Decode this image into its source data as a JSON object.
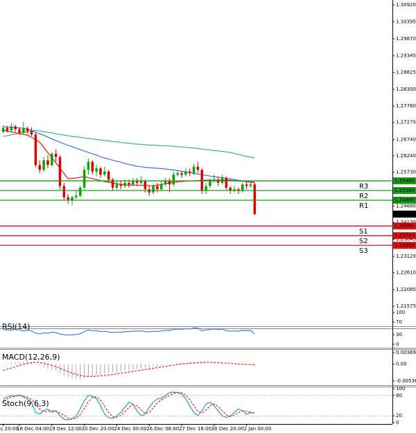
{
  "chart_data": [
    {
      "type": "candlestick",
      "ylim": [
        1.2097,
        1.3107
      ],
      "yticks": [
        {
          "value": 1.3092,
          "label": "1.30920"
        },
        1.30395,
        {
          "value": 1.2987,
          "label": "1.29870"
        },
        1.29345,
        1.28825,
        {
          "value": 1.283,
          "label": "1.28300"
        },
        {
          "value": 1.2778,
          "label": "1.27780"
        },
        1.27275,
        {
          "value": 1.2674,
          "label": "1.26740"
        },
        {
          "value": 1.2624,
          "label": "1.26240"
        },
        {
          "value": 1.2573,
          "label": "1.25730"
        },
        {
          "value": 1.2468,
          "label": "1.24680"
        },
        {
          "value": 1.2417,
          "label": "1.24170"
        },
        1.23645,
        {
          "value": 1.2312,
          "label": "1.23120"
        },
        {
          "value": 1.2261,
          "label": "1.22610"
        },
        1.22085,
        1.21575
      ],
      "up_color": "#00a800",
      "down_color": "#e00000",
      "open": [
        1.2698,
        1.271,
        1.2702,
        1.2715,
        1.2706,
        1.2695,
        1.2708,
        1.27,
        1.269,
        1.2595,
        1.258,
        1.261,
        1.2595,
        1.263,
        1.262,
        1.253,
        1.2495,
        1.2485,
        1.2495,
        1.25,
        1.2525,
        1.258,
        1.2605,
        1.2575,
        1.2585,
        1.2565,
        1.2575,
        1.255,
        1.2525,
        1.2535,
        1.253,
        1.254,
        1.2535,
        1.2545,
        1.254,
        1.2545,
        1.252,
        1.251,
        1.253,
        1.252,
        1.2535,
        1.2545,
        1.2535,
        1.2565,
        1.257,
        1.2565,
        1.2575,
        1.257,
        1.259,
        1.258,
        1.2515,
        1.253,
        1.2545,
        1.255,
        1.254,
        1.2555,
        1.2525,
        1.2515,
        1.252,
        1.2515,
        1.2535,
        1.253,
        1.2535
      ],
      "high": [
        1.2718,
        1.2716,
        1.2725,
        1.272,
        1.2712,
        1.273,
        1.2715,
        1.2712,
        1.2695,
        1.261,
        1.262,
        1.2625,
        1.2635,
        1.2645,
        1.2625,
        1.254,
        1.2505,
        1.25,
        1.2515,
        1.253,
        1.259,
        1.2615,
        1.261,
        1.2595,
        1.259,
        1.259,
        1.258,
        1.2555,
        1.2545,
        1.2545,
        1.255,
        1.255,
        1.2555,
        1.2555,
        1.256,
        1.255,
        1.253,
        1.2535,
        1.254,
        1.2545,
        1.2555,
        1.2555,
        1.2575,
        1.258,
        1.2575,
        1.2585,
        1.2585,
        1.26,
        1.2605,
        1.2585,
        1.254,
        1.2555,
        1.2565,
        1.256,
        1.2565,
        1.256,
        1.253,
        1.253,
        1.2525,
        1.254,
        1.2545,
        1.254,
        1.254
      ],
      "low": [
        1.2694,
        1.2696,
        1.2699,
        1.2698,
        1.2688,
        1.269,
        1.2692,
        1.2685,
        1.2588,
        1.257,
        1.2575,
        1.2585,
        1.259,
        1.2605,
        1.252,
        1.2485,
        1.2475,
        1.247,
        1.249,
        1.2495,
        1.252,
        1.2565,
        1.2565,
        1.256,
        1.2555,
        1.256,
        1.254,
        1.2515,
        1.252,
        1.252,
        1.2525,
        1.2525,
        1.253,
        1.253,
        1.2535,
        1.251,
        1.25,
        1.2505,
        1.251,
        1.2515,
        1.253,
        1.251,
        1.253,
        1.256,
        1.2555,
        1.256,
        1.256,
        1.2565,
        1.257,
        1.2505,
        1.2505,
        1.2525,
        1.254,
        1.253,
        1.2535,
        1.2515,
        1.2505,
        1.251,
        1.2505,
        1.251,
        1.252,
        1.2525,
        1.244
      ],
      "close": [
        1.271,
        1.2702,
        1.2715,
        1.2706,
        1.2695,
        1.2708,
        1.27,
        1.269,
        1.2595,
        1.258,
        1.261,
        1.2595,
        1.263,
        1.262,
        1.253,
        1.2495,
        1.2485,
        1.2495,
        1.25,
        1.2525,
        1.258,
        1.2605,
        1.2575,
        1.2585,
        1.2565,
        1.2575,
        1.255,
        1.2525,
        1.2535,
        1.253,
        1.254,
        1.2535,
        1.2545,
        1.254,
        1.2545,
        1.252,
        1.251,
        1.253,
        1.252,
        1.2535,
        1.2545,
        1.2535,
        1.2565,
        1.257,
        1.2565,
        1.2575,
        1.257,
        1.259,
        1.258,
        1.2515,
        1.253,
        1.2545,
        1.255,
        1.254,
        1.2555,
        1.2525,
        1.2515,
        1.252,
        1.2515,
        1.2535,
        1.253,
        1.2535,
        1.24428
      ],
      "moving_averages": [
        {
          "color": "#3cb371",
          "values": [
            1.2684,
            1.2686,
            1.2689,
            1.2691,
            1.2694,
            1.2696,
            1.2698,
            1.2701,
            1.2703,
            1.2701,
            1.2699,
            1.2697,
            1.2695,
            1.2692,
            1.269,
            1.2688,
            1.2686,
            1.2684,
            1.2683,
            1.2681,
            1.2679,
            1.2678,
            1.2676,
            1.2674,
            1.2673,
            1.2671,
            1.267,
            1.2668,
            1.2667,
            1.2665,
            1.2664,
            1.2663,
            1.2661,
            1.266,
            1.2659,
            1.2658,
            1.2657,
            1.2657,
            1.2656,
            1.2655,
            1.2655,
            1.2654,
            1.2653,
            1.2652,
            1.2651,
            1.265,
            1.2649,
            1.2648,
            1.2646,
            1.2645,
            1.2643,
            1.2642,
            1.264,
            1.2639,
            1.2637,
            1.2636,
            1.2634,
            1.2631,
            1.2628,
            1.2625,
            1.2622,
            1.262,
            1.2617
          ]
        },
        {
          "color": "#3b6ed8",
          "values": [
            1.2714,
            1.2713,
            1.2712,
            1.2711,
            1.271,
            1.2709,
            1.2707,
            1.2702,
            1.2697,
            1.2692,
            1.2687,
            1.2682,
            1.2676,
            1.2671,
            1.2666,
            1.2661,
            1.2656,
            1.2652,
            1.2647,
            1.2643,
            1.2639,
            1.2634,
            1.263,
            1.2626,
            1.2621,
            1.2617,
            1.2614,
            1.261,
            1.2607,
            1.2604,
            1.26,
            1.2597,
            1.2594,
            1.2591,
            1.259,
            1.2588,
            1.2587,
            1.2586,
            1.2585,
            1.2584,
            1.2583,
            1.2581,
            1.258,
            1.2578,
            1.2576,
            1.2574,
            1.2572,
            1.2569,
            1.2567,
            1.2565,
            1.2563,
            1.2561,
            1.2559,
            1.2557,
            1.2556,
            1.2554,
            1.2552,
            1.255,
            1.2548,
            1.2546,
            1.2544,
            1.2542,
            1.254
          ]
        },
        {
          "color": "#f01010",
          "values": [
            1.2703,
            1.27,
            1.2698,
            1.2695,
            1.2693,
            1.269,
            1.2688,
            1.2681,
            1.2673,
            1.2666,
            1.265,
            1.2634,
            1.2618,
            1.2602,
            1.2585,
            1.2569,
            1.2552,
            1.2554,
            1.2555,
            1.2557,
            1.2559,
            1.2556,
            1.2553,
            1.255,
            1.2547,
            1.2544,
            1.2542,
            1.254,
            1.2537,
            1.2535,
            1.2533,
            1.2533,
            1.2533,
            1.2532,
            1.2532,
            1.2532,
            1.2531,
            1.2531,
            1.2533,
            1.2535,
            1.2537,
            1.254,
            1.2542,
            1.2543,
            1.2544,
            1.2545,
            1.2546,
            1.2546,
            1.2547,
            1.2548,
            1.2548,
            1.2548,
            1.2548,
            1.2548,
            1.2548,
            1.2548,
            1.2548,
            1.2547,
            1.2546,
            1.2545,
            1.2544,
            1.2543,
            1.2542
          ]
        }
      ],
      "levels": [
        {
          "label": "R3",
          "value": 1.2546,
          "value_label": "1.25460",
          "color": "#1a9a1a"
        },
        {
          "label": "R2",
          "value": 1.2516,
          "value_label": "1.25160",
          "color": "#1a9a1a"
        },
        {
          "label": "R1",
          "value": 1.2486,
          "value_label": "1.24860",
          "color": "#1a9a1a"
        },
        {
          "label": "S1",
          "value": 1.2406,
          "value_label": "1.24060",
          "color": "#e01010"
        },
        {
          "label": "S2",
          "value": 1.2376,
          "value_label": "1.23760",
          "color": "#e01010"
        },
        {
          "label": "S3",
          "value": 1.2346,
          "value_label": "1.23460",
          "color": "#e01010"
        }
      ],
      "last_price": 1.24428
    },
    {
      "type": "line",
      "title": "RSI(14)",
      "ylim": [
        0,
        100
      ],
      "yticks": [
        100,
        70,
        30,
        0
      ],
      "series": [
        {
          "color": "#3b82d8",
          "values": [
            45,
            46,
            44,
            47,
            45,
            42,
            44,
            42,
            35,
            33,
            36,
            35,
            38,
            37,
            32,
            30,
            29,
            30,
            31,
            33,
            40,
            45,
            42,
            43,
            40,
            41,
            39,
            37,
            38,
            38,
            40,
            40,
            42,
            41,
            42,
            40,
            39,
            41,
            40,
            42,
            44,
            43,
            47,
            48,
            47,
            49,
            48,
            52,
            51,
            42,
            45,
            47,
            48,
            46,
            48,
            43,
            41,
            42,
            41,
            44,
            43,
            44,
            33
          ]
        }
      ]
    },
    {
      "type": "macd",
      "title": "MACD(12,26,9)",
      "ylim": [
        -0.005364,
        0.003695
      ],
      "yticks": [
        0.003695,
        {
          "value": 0,
          "label": "0.00"
        },
        -0.005364
      ],
      "color": "#a8a8a8",
      "values": [
        0.0002,
        0.0003,
        0.0005,
        0.0006,
        0.0007,
        0.0008,
        0.0008,
        0.0007,
        0.0002,
        -0.0005,
        -0.001,
        -0.0015,
        -0.0018,
        -0.002,
        -0.0028,
        -0.0036,
        -0.0042,
        -0.0046,
        -0.0048,
        -0.0049,
        -0.0045,
        -0.004,
        -0.0037,
        -0.0034,
        -0.0032,
        -0.003,
        -0.0028,
        -0.0027,
        -0.0025,
        -0.0023,
        -0.0021,
        -0.0019,
        -0.0017,
        -0.0015,
        -0.0013,
        -0.0012,
        -0.0011,
        -0.0009,
        -0.0007,
        -0.0005,
        -0.0003,
        -0.0002,
        0,
        0.0002,
        0.0003,
        0.0004,
        0.0005,
        0.0006,
        0.0007,
        0.0004,
        0.0003,
        0.0003,
        0.0003,
        0.0002,
        0.0002,
        0.0001,
        0,
        -0.0001,
        -0.0002,
        -0.0002,
        -0.0002,
        -0.0002,
        -0.0008
      ],
      "signal": {
        "color": "#e02020",
        "values": [
          -0.002,
          -0.0016,
          -0.0012,
          -0.0008,
          -0.0004,
          0,
          0.0003,
          0.0005,
          0.0006,
          0.0005,
          0.0003,
          0,
          -0.0004,
          -0.0008,
          -0.0013,
          -0.0018,
          -0.0023,
          -0.0028,
          -0.0033,
          -0.0036,
          -0.0038,
          -0.0039,
          -0.0039,
          -0.0038,
          -0.0037,
          -0.0036,
          -0.0034,
          -0.0033,
          -0.0031,
          -0.0029,
          -0.0027,
          -0.0025,
          -0.0023,
          -0.0021,
          -0.0019,
          -0.0017,
          -0.0015,
          -0.0013,
          -0.0011,
          -0.0009,
          -0.0007,
          -0.0005,
          -0.0003,
          -0.0001,
          0.0001,
          0.0002,
          0.0003,
          0.0004,
          0.0005,
          0.0006,
          0.0006,
          0.0006,
          0.0005,
          0.0005,
          0.0004,
          0.0004,
          0.0003,
          0.0002,
          0.0001,
          0,
          -0.0001,
          -0.0001,
          -0.0002
        ]
      }
    },
    {
      "type": "line",
      "title": "Stoch(9,6,3)",
      "ylim": [
        0,
        100
      ],
      "yticks": [
        100,
        80,
        20,
        0
      ],
      "grid": true,
      "series": [
        {
          "color": "#20a0b0",
          "values": [
            70,
            75,
            80,
            78,
            82,
            75,
            70,
            60,
            30,
            25,
            35,
            40,
            30,
            35,
            20,
            10,
            8,
            12,
            20,
            40,
            65,
            80,
            78,
            70,
            50,
            25,
            15,
            12,
            20,
            30,
            45,
            60,
            55,
            35,
            20,
            25,
            45,
            60,
            70,
            72,
            80,
            88,
            90,
            88,
            85,
            70,
            50,
            30,
            20,
            35,
            55,
            60,
            50,
            35,
            20,
            15,
            20,
            30,
            40,
            35,
            25,
            30,
            28
          ]
        },
        {
          "color": "#e02020",
          "dashed": true,
          "values": [
            65,
            70,
            75,
            78,
            80,
            78,
            75,
            68,
            55,
            40,
            32,
            33,
            35,
            35,
            28,
            22,
            13,
            10,
            13,
            24,
            42,
            62,
            74,
            76,
            66,
            48,
            30,
            17,
            16,
            21,
            32,
            45,
            53,
            50,
            37,
            27,
            30,
            43,
            58,
            67,
            74,
            80,
            86,
            89,
            88,
            81,
            68,
            50,
            33,
            28,
            37,
            50,
            55,
            48,
            35,
            23,
            18,
            22,
            30,
            35,
            33,
            30,
            28
          ]
        }
      ],
      "xticks": [
        {
          "value": 0,
          "label": "c 20:00"
        },
        {
          "value": 4,
          "label": "18 Dec 04:00"
        },
        {
          "value": 12,
          "label": "19 Dec 12:00"
        },
        {
          "value": 20,
          "label": "20 Dec 20:00"
        },
        {
          "value": 28,
          "label": "24 Dec 00:00"
        },
        {
          "value": 36,
          "label": "26 Dec 08:00"
        },
        {
          "value": 44,
          "label": "27 Dec 16:00"
        },
        {
          "value": 52,
          "label": "30 Dec 20:00"
        },
        {
          "value": 60,
          "label": "2 Jan 00:00"
        }
      ]
    }
  ]
}
